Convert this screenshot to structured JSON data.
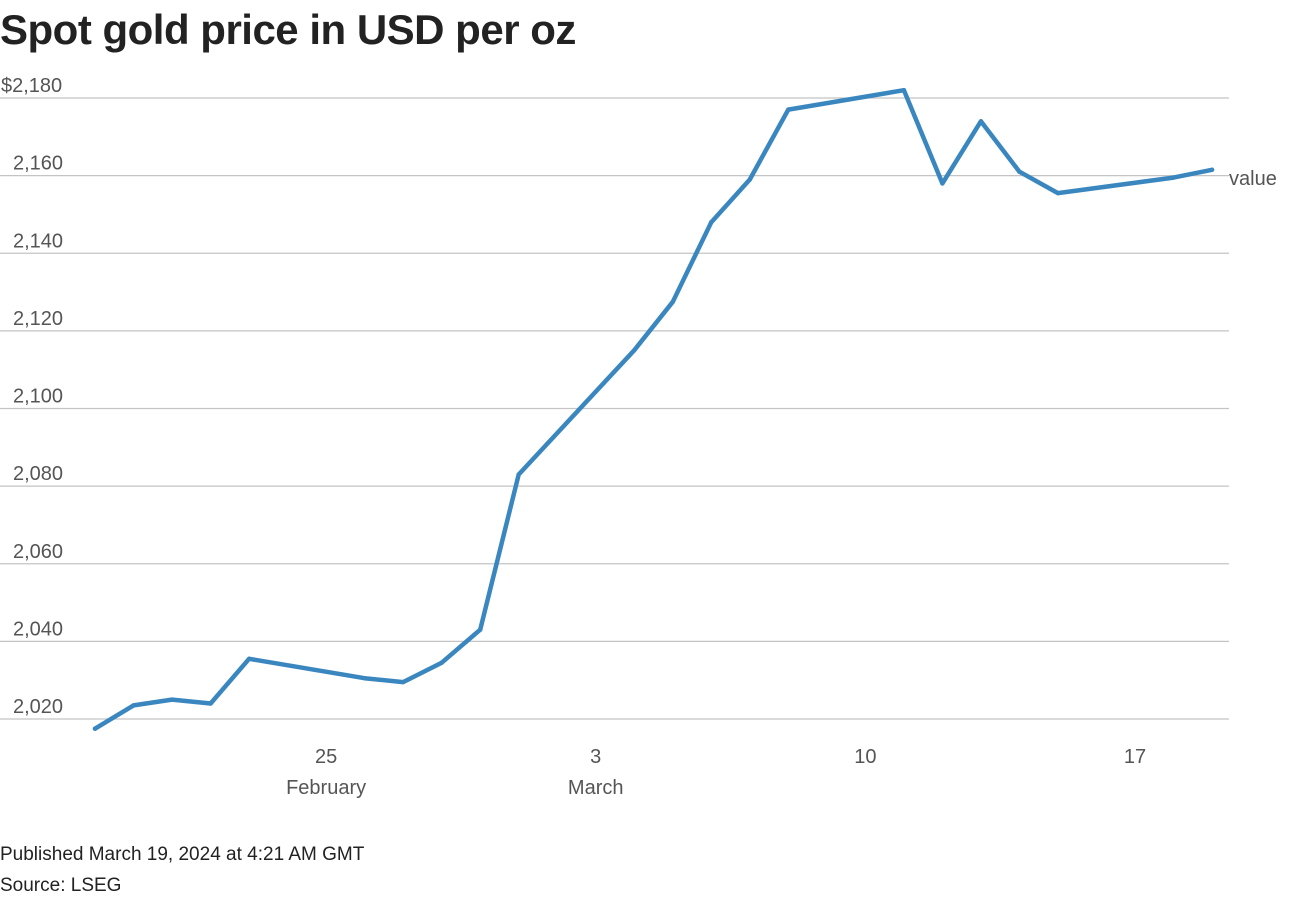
{
  "title": "Spot gold price in USD per oz",
  "footer": {
    "published": "Published March 19, 2024 at 4:21 AM GMT",
    "source": "Source: LSEG"
  },
  "colors": {
    "line": "#3a87c0",
    "grid": "#c4c4c4",
    "axis_text": "#555555"
  },
  "chart_data": {
    "type": "line",
    "title": "Spot gold price in USD per oz",
    "xlabel": "",
    "ylabel": "",
    "ylim": [
      2015,
      2185
    ],
    "xlim": [
      "2024-02-19",
      "2024-03-19"
    ],
    "y_ticks": [
      2020,
      2040,
      2060,
      2080,
      2100,
      2120,
      2140,
      2160,
      2180
    ],
    "y_tick_labels": [
      "2,020",
      "2,040",
      "2,060",
      "2,080",
      "2,100",
      "2,120",
      "2,140",
      "2,160",
      "$2,180"
    ],
    "x_ticks": [
      {
        "date": "2024-02-25",
        "label": "25",
        "sublabel": "February"
      },
      {
        "date": "2024-03-03",
        "label": "3",
        "sublabel": "March"
      },
      {
        "date": "2024-03-10",
        "label": "10",
        "sublabel": ""
      },
      {
        "date": "2024-03-17",
        "label": "17",
        "sublabel": ""
      }
    ],
    "grid": true,
    "legend": "none",
    "series": [
      {
        "name": "value",
        "x": [
          "2024-02-19",
          "2024-02-20",
          "2024-02-21",
          "2024-02-22",
          "2024-02-23",
          "2024-02-26",
          "2024-02-27",
          "2024-02-28",
          "2024-02-29",
          "2024-03-01",
          "2024-03-04",
          "2024-03-05",
          "2024-03-06",
          "2024-03-07",
          "2024-03-08",
          "2024-03-11",
          "2024-03-12",
          "2024-03-13",
          "2024-03-14",
          "2024-03-15",
          "2024-03-18",
          "2024-03-19"
        ],
        "values": [
          2017.5,
          2023.5,
          2025,
          2024,
          2035.5,
          2030.5,
          2029.5,
          2034.5,
          2043,
          2083,
          2115,
          2127.5,
          2148,
          2159,
          2177,
          2182,
          2158,
          2174,
          2161,
          2155.5,
          2159.5,
          2161.5
        ]
      }
    ]
  }
}
